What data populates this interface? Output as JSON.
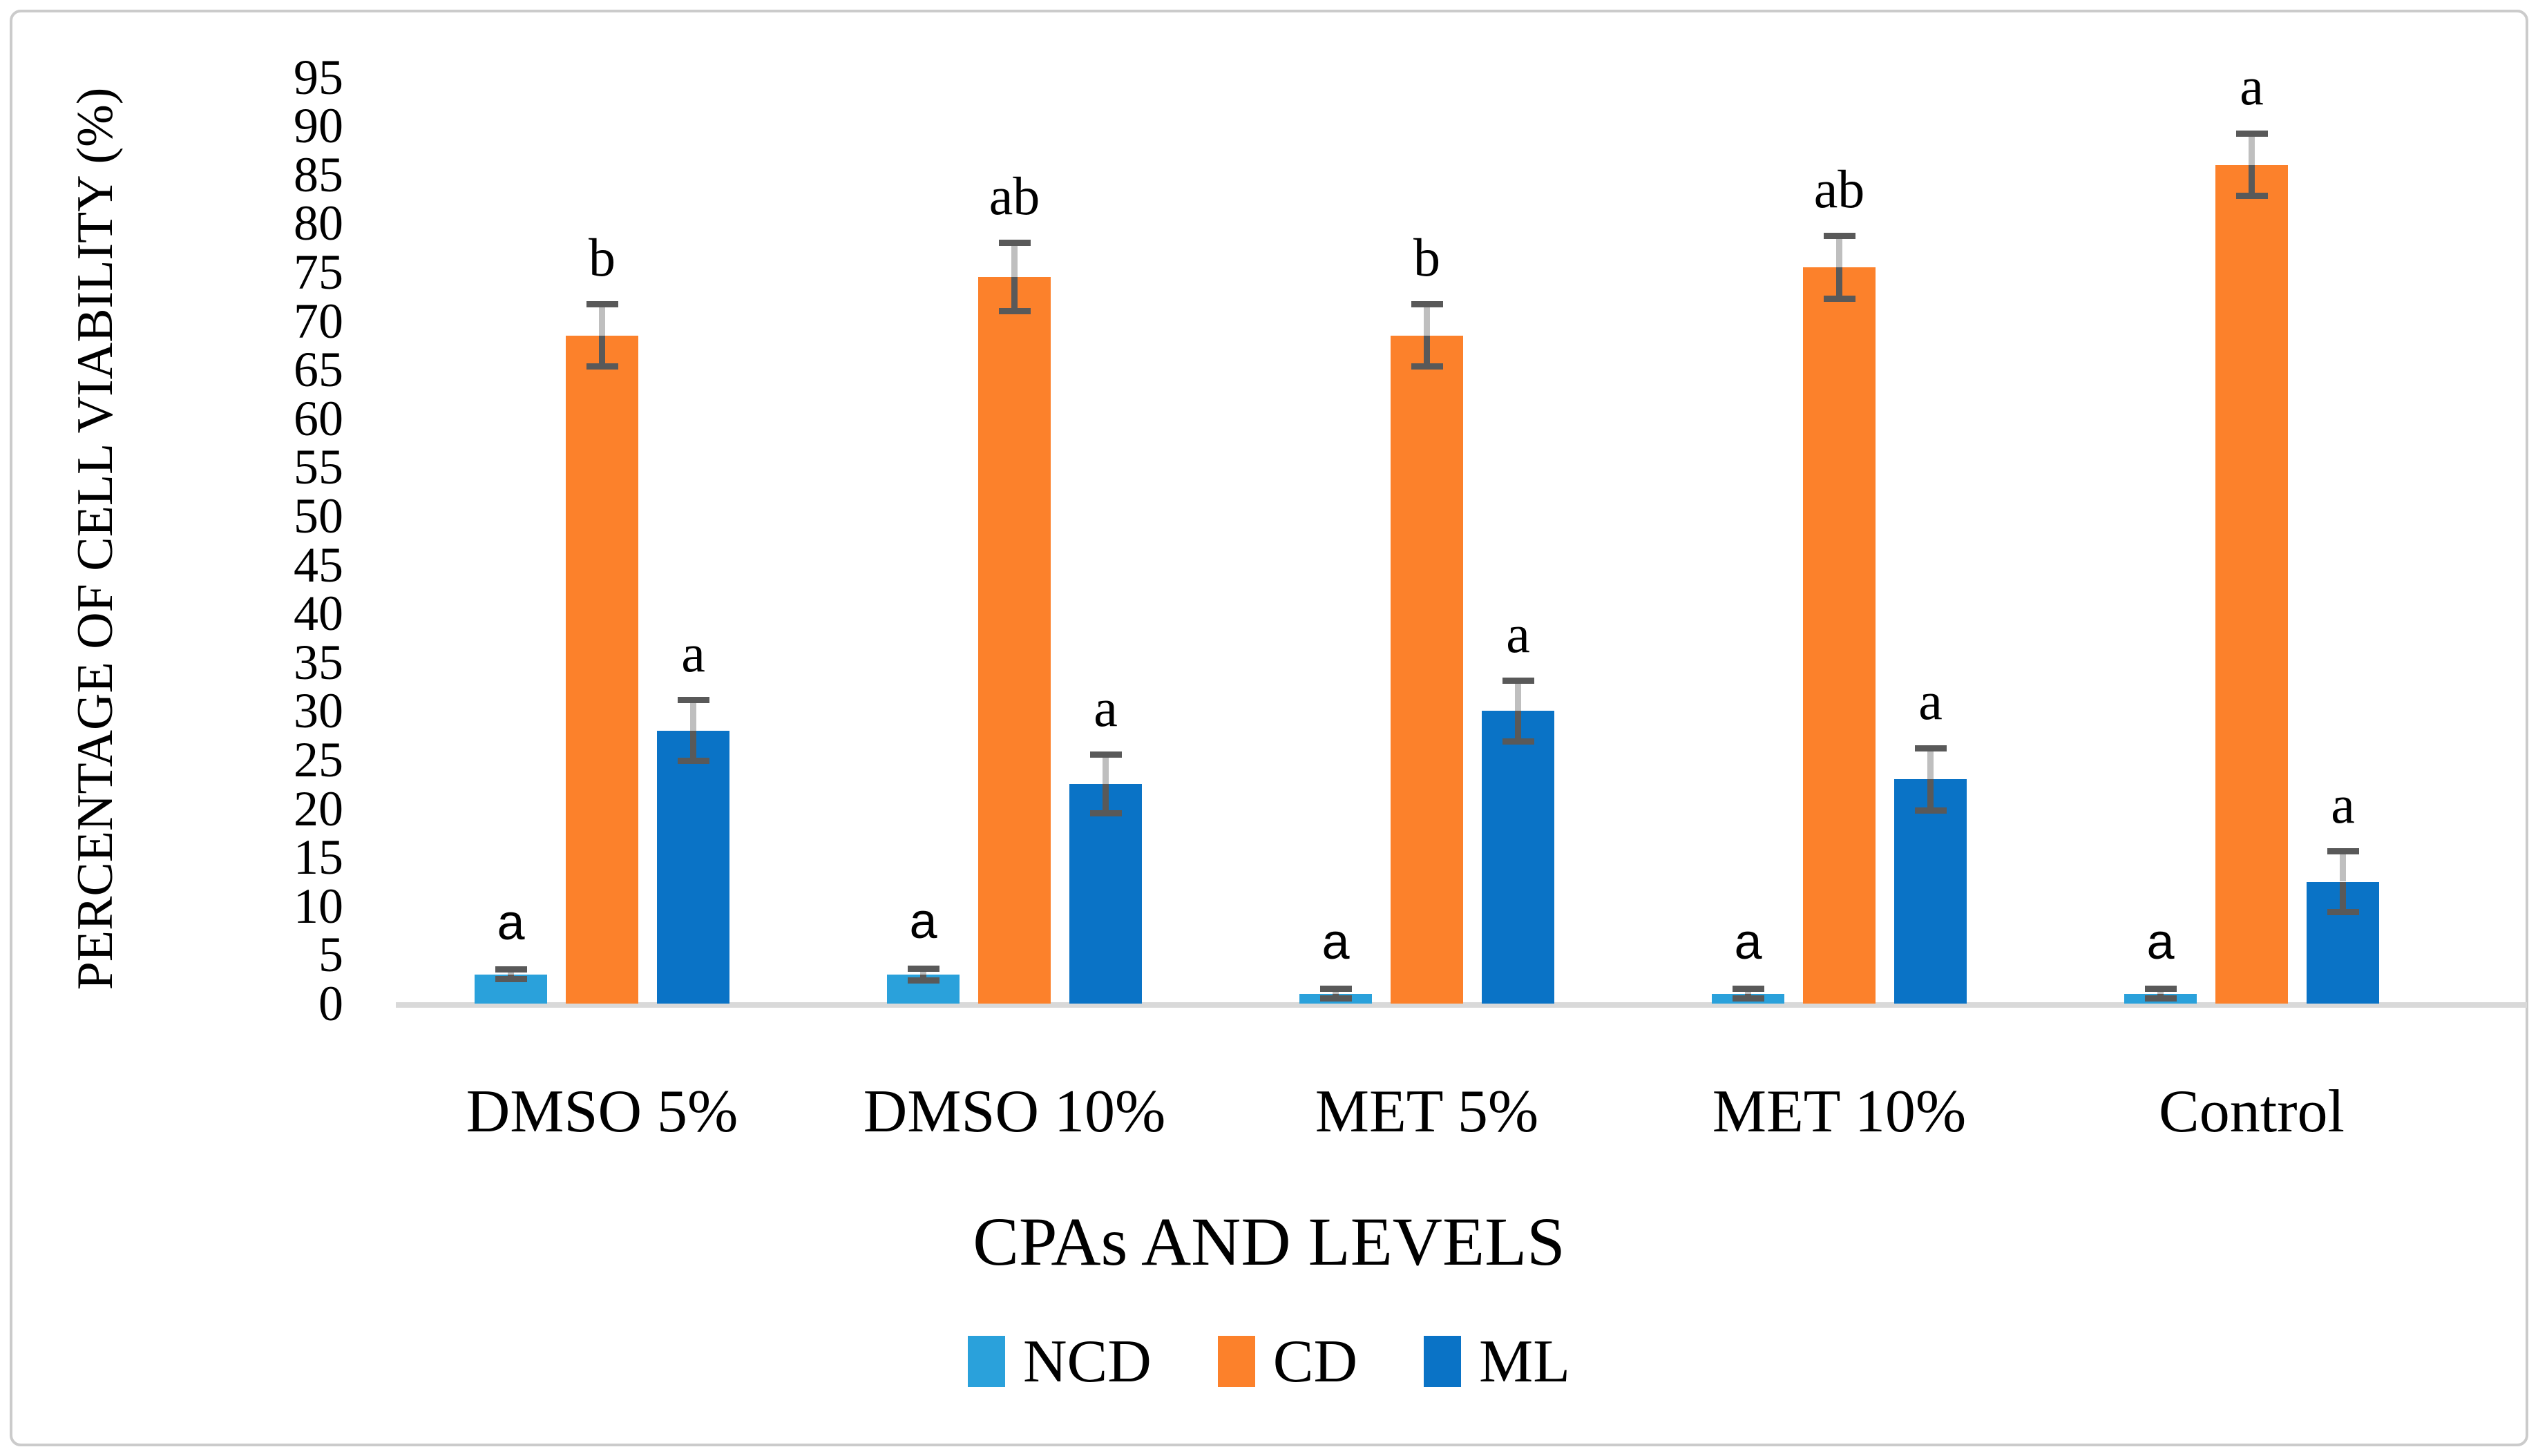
{
  "chart_data": {
    "type": "bar",
    "title": "",
    "xlabel": "CPAs AND LEVELS",
    "ylabel": "PERCENTAGE OF CELL VIABILITY (%)",
    "ylim": [
      0,
      95
    ],
    "ytick_step": 5,
    "grid": false,
    "legend_position": "bottom",
    "categories": [
      "DMSO 5%",
      "DMSO 10%",
      "MET 5%",
      "MET 10%",
      "Control"
    ],
    "series": [
      {
        "name": "NCD",
        "color": "#2AA1DB",
        "letter_style": "sans",
        "values": [
          3,
          3,
          1,
          1,
          1
        ],
        "errors": [
          0.5,
          0.6,
          0.5,
          0.5,
          0.5
        ],
        "letters": [
          "a",
          "a",
          "a",
          "a",
          "a"
        ]
      },
      {
        "name": "CD",
        "color": "#FC812B",
        "letter_style": "serif",
        "values": [
          68.5,
          74.5,
          68.5,
          75.5,
          86
        ],
        "errors": [
          3.2,
          3.5,
          3.2,
          3.2,
          3.2
        ],
        "letters": [
          "b",
          "ab",
          "b",
          "ab",
          "a"
        ]
      },
      {
        "name": "ML",
        "color": "#0A73C6",
        "letter_style": "serif",
        "values": [
          28,
          22.5,
          30,
          23,
          12.5
        ],
        "errors": [
          3.1,
          3.0,
          3.1,
          3.2,
          3.1
        ],
        "letters": [
          "a",
          "a",
          "a",
          "a",
          "a"
        ]
      }
    ],
    "error_bar_colors": {
      "upper": "#BFBFBF",
      "lower": "#595959",
      "cap": "#595959"
    },
    "axis_line_color": "#D9D9D9"
  }
}
